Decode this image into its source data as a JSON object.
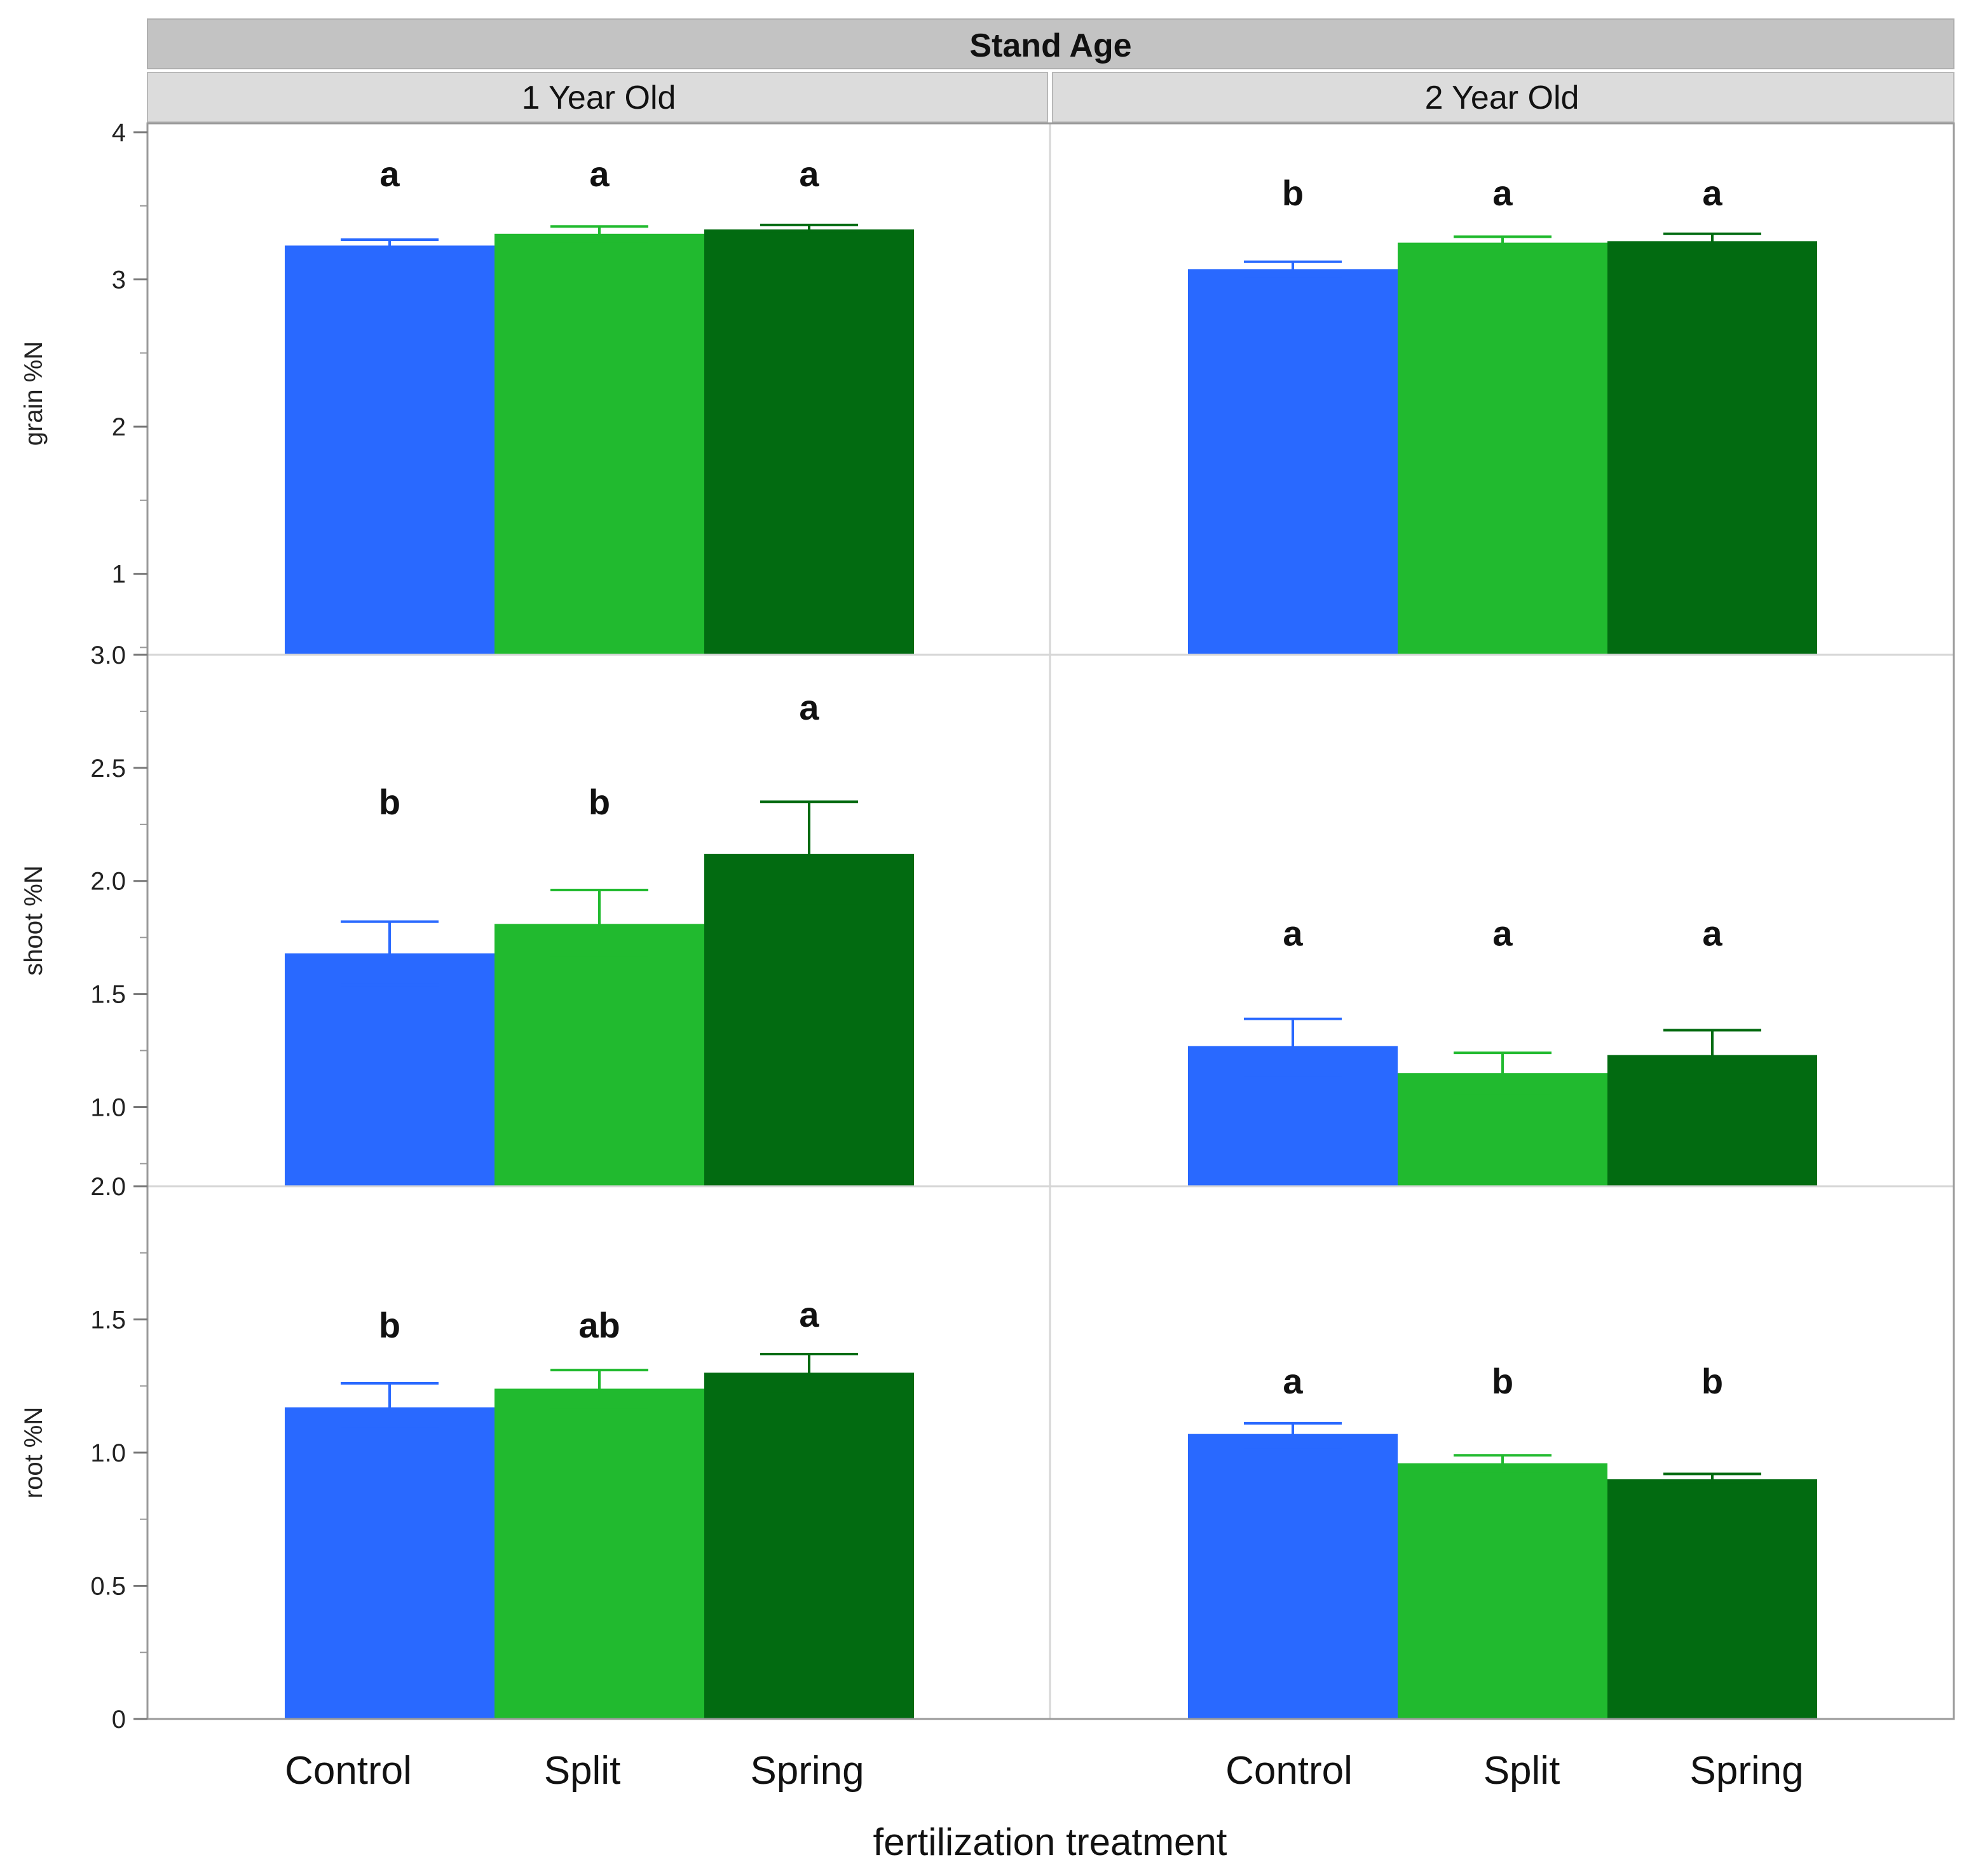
{
  "chart_data": {
    "type": "bar",
    "group_title": "Stand Age",
    "xlabel": "fertilization treatment",
    "categories": [
      "Control",
      "Split",
      "Spring"
    ],
    "colors": {
      "Control": "#2969FF",
      "Split": "#21BA2F",
      "Spring": "#026B11",
      "strip_main": "#C3C3C3",
      "strip_sub": "#DCDCDC",
      "frame": "#9A9A9A",
      "grid": "#D6D6D6"
    },
    "columns": [
      {
        "label": "1 Year Old"
      },
      {
        "label": "2 Year Old"
      }
    ],
    "rows": [
      {
        "ylabel": "grain %N",
        "ylim": [
          0.45,
          4.0
        ],
        "ticks": [
          {
            "v": 1,
            "label": "1"
          },
          {
            "v": 2,
            "label": "2"
          },
          {
            "v": 3,
            "label": "3"
          },
          {
            "v": 4,
            "label": "4"
          }
        ],
        "minor_ticks": [
          0.5,
          1.5,
          2.5,
          3.5
        ],
        "panels": [
          {
            "values": [
              3.23,
              3.31,
              3.34
            ],
            "err_low": [
              3.19,
              3.26,
              3.31
            ],
            "err_high": [
              3.27,
              3.36,
              3.37
            ],
            "letters": [
              "a",
              "a",
              "a"
            ],
            "letter_vals": [
              3.72,
              3.72,
              3.72
            ]
          },
          {
            "values": [
              3.07,
              3.25,
              3.26
            ],
            "err_low": [
              3.02,
              3.21,
              3.21
            ],
            "err_high": [
              3.12,
              3.29,
              3.31
            ],
            "letters": [
              "b",
              "a",
              "a"
            ],
            "letter_vals": [
              3.59,
              3.59,
              3.59
            ]
          }
        ]
      },
      {
        "ylabel": "shoot %N",
        "ylim": [
          0.65,
          3.0
        ],
        "ticks": [
          {
            "v": 1.0,
            "label": "1.0"
          },
          {
            "v": 1.5,
            "label": "1.5"
          },
          {
            "v": 2.0,
            "label": "2.0"
          },
          {
            "v": 2.5,
            "label": "2.5"
          },
          {
            "v": 3.0,
            "label": "3.0"
          }
        ],
        "minor_ticks": [
          0.75,
          1.25,
          1.75,
          2.25,
          2.75
        ],
        "panels": [
          {
            "values": [
              1.68,
              1.81,
              2.12
            ],
            "err_low": [
              1.54,
              1.66,
              1.89
            ],
            "err_high": [
              1.82,
              1.96,
              2.35
            ],
            "letters": [
              "b",
              "b",
              "a"
            ],
            "letter_vals": [
              2.35,
              2.35,
              2.77
            ]
          },
          {
            "values": [
              1.27,
              1.15,
              1.23
            ],
            "err_low": [
              1.14,
              1.05,
              1.11
            ],
            "err_high": [
              1.39,
              1.24,
              1.34
            ],
            "letters": [
              "a",
              "a",
              "a"
            ],
            "letter_vals": [
              1.77,
              1.77,
              1.77
            ]
          }
        ]
      },
      {
        "ylabel": "root %N",
        "ylim": [
          0,
          2.0
        ],
        "ticks": [
          {
            "v": 0,
            "label": "0"
          },
          {
            "v": 0.5,
            "label": "0.5"
          },
          {
            "v": 1.0,
            "label": "1.0"
          },
          {
            "v": 1.5,
            "label": "1.5"
          },
          {
            "v": 2.0,
            "label": "2.0"
          }
        ],
        "minor_ticks": [
          0.25,
          0.75,
          1.25,
          1.75
        ],
        "panels": [
          {
            "values": [
              1.17,
              1.24,
              1.3
            ],
            "err_low": [
              1.09,
              1.17,
              1.23
            ],
            "err_high": [
              1.26,
              1.31,
              1.37
            ],
            "letters": [
              "b",
              "ab",
              "a"
            ],
            "letter_vals": [
              1.48,
              1.48,
              1.52
            ]
          },
          {
            "values": [
              1.07,
              0.96,
              0.9
            ],
            "err_low": [
              1.02,
              0.93,
              0.88
            ],
            "err_high": [
              1.11,
              0.99,
              0.92
            ],
            "letters": [
              "a",
              "b",
              "b"
            ],
            "letter_vals": [
              1.27,
              1.27,
              1.27
            ]
          }
        ]
      }
    ]
  }
}
